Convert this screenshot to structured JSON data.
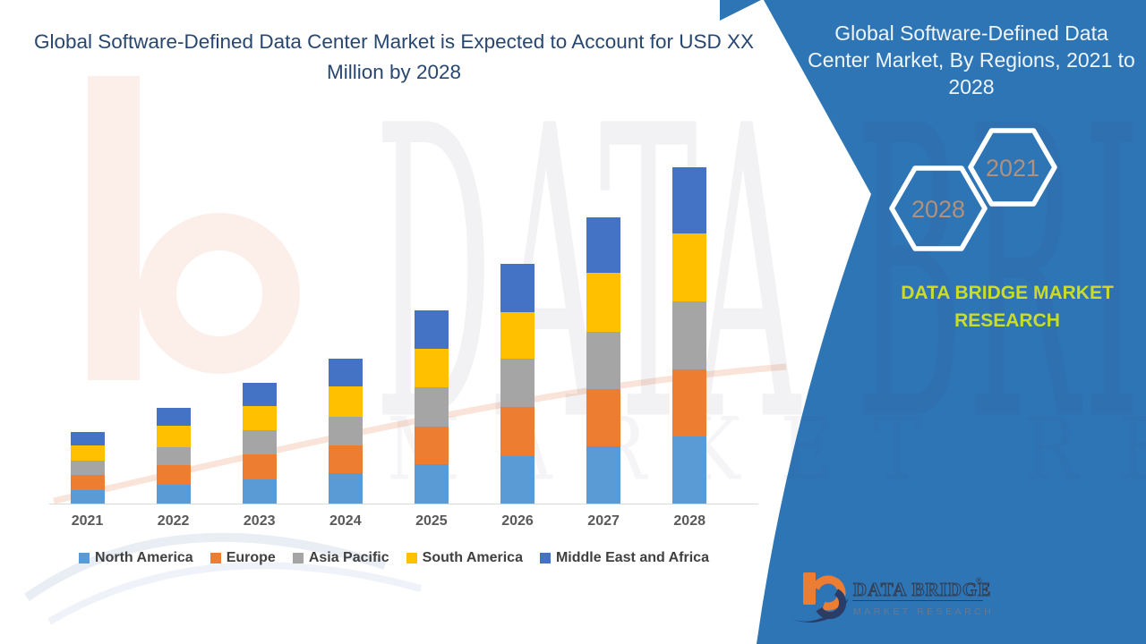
{
  "title": "Global Software-Defined Data Center Market is Expected to Account for USD XX Million by 2028",
  "panel": {
    "title": "Global Software-Defined Data Center Market, By Regions, 2021 to 2028",
    "brand_text": "DATA BRIDGE MARKET RESEARCH",
    "accent_color": "#2e75b6",
    "brand_text_color": "#c9dd28",
    "hexagon_label_color": "#b29079",
    "hexagons": [
      {
        "label": "2028"
      },
      {
        "label": "2021"
      }
    ]
  },
  "logo": {
    "wordmark": "DATA BRIDGE",
    "reg": "®",
    "tagline": "MARKET RESEARCH"
  },
  "watermark": {
    "line1": "DATA BRIDGE",
    "line2": "MARKET RESEARCH"
  },
  "chart_data": {
    "type": "bar",
    "stacked": true,
    "title": "Global Software-Defined Data Center Market is Expected to Account for USD XX Million by 2028",
    "xlabel": "",
    "ylabel": "",
    "categories": [
      "2021",
      "2022",
      "2023",
      "2024",
      "2025",
      "2026",
      "2027",
      "2028"
    ],
    "series": [
      {
        "name": "North America",
        "color": "#5b9bd5",
        "values": [
          15,
          21,
          27,
          34,
          44,
          53,
          64,
          75
        ]
      },
      {
        "name": "Europe",
        "color": "#ed7d31",
        "values": [
          17,
          22,
          28,
          31,
          42,
          55,
          64,
          75
        ]
      },
      {
        "name": "Asia Pacific",
        "color": "#a5a5a5",
        "values": [
          16,
          20,
          27,
          32,
          44,
          54,
          64,
          76
        ]
      },
      {
        "name": "South America",
        "color": "#ffc000",
        "values": [
          17,
          24,
          27,
          34,
          43,
          52,
          66,
          76
        ]
      },
      {
        "name": "Middle East and Africa",
        "color": "#4472c4",
        "values": [
          15,
          20,
          26,
          31,
          43,
          54,
          62,
          74
        ]
      }
    ],
    "legend_position": "bottom",
    "grid": false,
    "y_axis_visible": false,
    "ylim": [
      0,
      400
    ]
  }
}
